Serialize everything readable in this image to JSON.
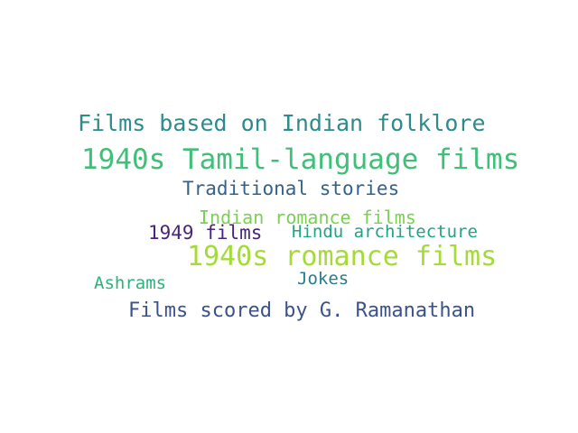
{
  "words": [
    {
      "text": "Films based on Indian folklore",
      "color": "#2e8b8c"
    },
    {
      "text": "1940s Tamil-language films",
      "color": "#3fbf78"
    },
    {
      "text": "Traditional stories",
      "color": "#33638d"
    },
    {
      "text": "Indian romance films",
      "color": "#7ad151"
    },
    {
      "text": "1949 films",
      "color": "#482576"
    },
    {
      "text": "Hindu architecture",
      "color": "#20a386"
    },
    {
      "text": "1940s romance films",
      "color": "#a5db36"
    },
    {
      "text": "Jokes",
      "color": "#287d8e"
    },
    {
      "text": "Ashrams",
      "color": "#2db27d"
    },
    {
      "text": "Films scored by G. Ramanathan",
      "color": "#3b528b"
    }
  ]
}
